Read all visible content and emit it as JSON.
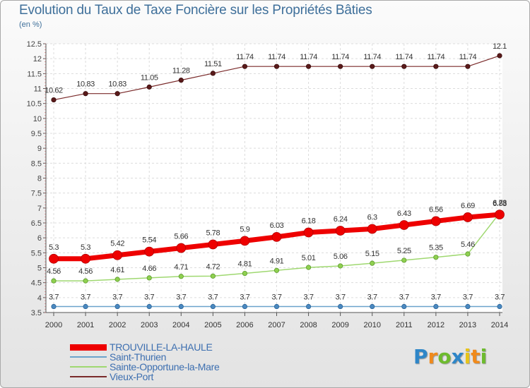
{
  "header": {
    "title": "Evolution du Taux de Taxe Foncière sur les Propriétés Bâties",
    "unit": "(en %)"
  },
  "brand": {
    "letters": [
      "P",
      "r",
      "o",
      "x",
      "i",
      "t",
      "i"
    ],
    "colors": [
      "#2e86c8",
      "#f08a1c",
      "#6dbb2e",
      "#2e86c8",
      "#e8c41a",
      "#f08a1c",
      "#6dbb2e"
    ]
  },
  "chart_data": {
    "type": "line",
    "title": "Evolution du Taux de Taxe Foncière sur les Propriétés Bâties",
    "ylabel": "(en %)",
    "xlabel": "",
    "ylim": [
      3.5,
      12.5
    ],
    "yticks": [
      "3.5",
      "4",
      "4.5",
      "5",
      "5.5",
      "6",
      "6.5",
      "7",
      "7.5",
      "8",
      "8.5",
      "9",
      "9.5",
      "10",
      "10.5",
      "11",
      "11.5",
      "12",
      "12.5"
    ],
    "categories": [
      "2000",
      "2001",
      "2002",
      "2003",
      "2004",
      "2005",
      "2006",
      "2007",
      "2008",
      "2009",
      "2010",
      "2011",
      "2012",
      "2013",
      "2014"
    ],
    "series": [
      {
        "name": "TROUVILLE-LA-HAULE",
        "color": "#ee0000",
        "values": [
          5.3,
          5.3,
          5.42,
          5.54,
          5.66,
          5.78,
          5.9,
          6.03,
          6.18,
          6.24,
          6.3,
          6.43,
          6.56,
          6.69,
          6.78
        ],
        "labels": [
          "5.3",
          "5.3",
          "5.42",
          "5.54",
          "5.66",
          "5.78",
          "5.9",
          "6.03",
          "6.18",
          "6.24",
          "6.3",
          "6.43",
          "6.56",
          "6.69",
          "6.78"
        ]
      },
      {
        "name": "Saint-Thurien",
        "color": "#6ba3cc",
        "values": [
          3.7,
          3.7,
          3.7,
          3.7,
          3.7,
          3.7,
          3.7,
          3.7,
          3.7,
          3.7,
          3.7,
          3.7,
          3.7,
          3.7,
          3.7
        ],
        "labels": [
          "3.7",
          "3.7",
          "3.7",
          "3.7",
          "3.7",
          "3.7",
          "3.7",
          "3.7",
          "3.7",
          "3.7",
          "3.7",
          "3.7",
          "3.7",
          "3.7",
          "3.7"
        ]
      },
      {
        "name": "Sainte-Opportune-la-Mare",
        "color": "#9fd870",
        "values": [
          4.56,
          4.56,
          4.61,
          4.66,
          4.71,
          4.72,
          4.81,
          4.91,
          5.01,
          5.06,
          5.15,
          5.25,
          5.35,
          5.46,
          6.83
        ],
        "labels": [
          "4.56",
          "4.56",
          "4.61",
          "4.66",
          "4.71",
          "4.72",
          "4.81",
          "4.91",
          "5.01",
          "5.06",
          "5.15",
          "5.25",
          "5.35",
          "5.46",
          "6.83"
        ]
      },
      {
        "name": "Vieux-Port",
        "color": "#7a2a2a",
        "values": [
          10.62,
          10.83,
          10.83,
          11.05,
          11.28,
          11.51,
          11.74,
          11.74,
          11.74,
          11.74,
          11.74,
          11.74,
          11.74,
          11.74,
          12.1
        ],
        "labels": [
          "10.62",
          "10.83",
          "10.83",
          "11.05",
          "11.28",
          "11.51",
          "11.74",
          "11.74",
          "11.74",
          "11.74",
          "11.74",
          "11.74",
          "11.74",
          "11.74",
          "12.1"
        ]
      }
    ],
    "grid": true,
    "legend": "bottom-left"
  }
}
